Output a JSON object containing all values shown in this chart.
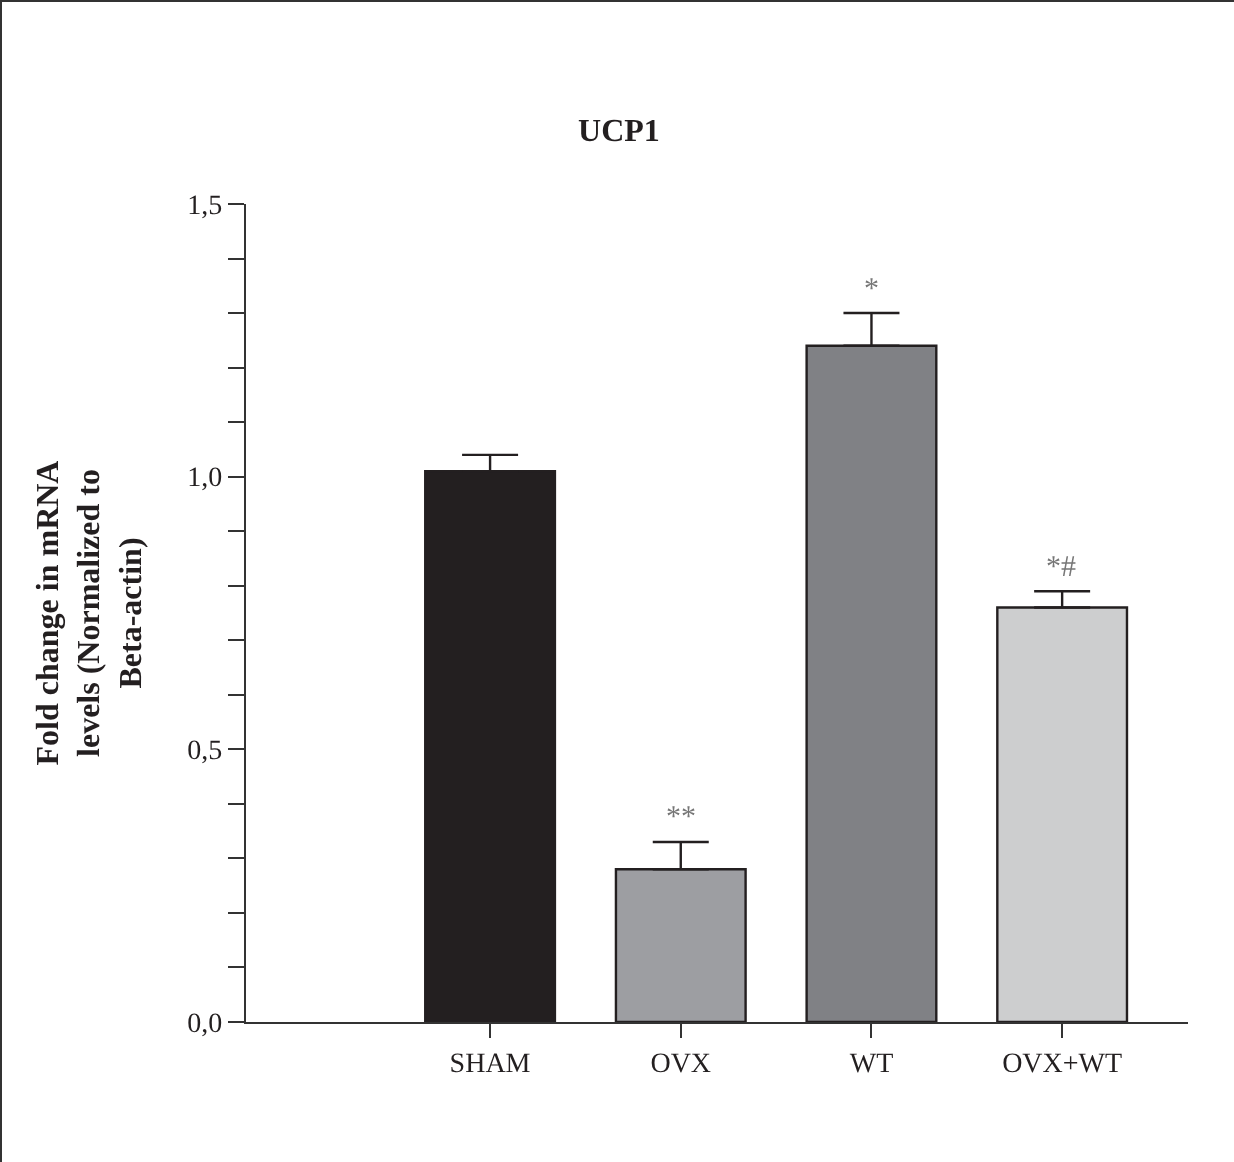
{
  "chart_data": {
    "type": "bar",
    "title": "UCP1",
    "ylabel": "Fold change in mRNA\nlevels (Normalized to\nBeta-actin)",
    "categories": [
      "SHAM",
      "OVX",
      "WT",
      "OVX+WT"
    ],
    "values": [
      1.01,
      0.28,
      1.24,
      0.76
    ],
    "colors": [
      "#231f20",
      "#9d9ea2",
      "#808185",
      "#cdcecf"
    ],
    "errors": [
      [
        1.01,
        1.04
      ],
      [
        0.28,
        0.33
      ],
      [
        1.24,
        1.3
      ],
      [
        0.76,
        0.79
      ]
    ],
    "ylim": [
      0,
      1.5
    ],
    "yticks": [
      {
        "value": 0,
        "label": "0,0"
      },
      {
        "value": 0.1,
        "label": null
      },
      {
        "value": 0.2,
        "label": null
      },
      {
        "value": 0.3,
        "label": null
      },
      {
        "value": 0.4,
        "label": null
      },
      {
        "value": 0.5,
        "label": "0,5"
      },
      {
        "value": 0.6,
        "label": null
      },
      {
        "value": 0.7,
        "label": null
      },
      {
        "value": 0.8,
        "label": null
      },
      {
        "value": 0.9,
        "label": null
      },
      {
        "value": 1,
        "label": "1,0"
      },
      {
        "value": 1.1,
        "label": null
      },
      {
        "value": 1.2,
        "label": null
      },
      {
        "value": 1.3,
        "label": null
      },
      {
        "value": 1.4,
        "label": null
      },
      {
        "value": 1.5,
        "label": "1,5"
      }
    ],
    "annotations": [
      {
        "text": "**",
        "x": "OVX",
        "y": 0.33
      },
      {
        "text": "*",
        "x": "WT",
        "y": 1.3
      },
      {
        "text": "*#",
        "x": "OVX+WT",
        "y": 0.79
      }
    ],
    "tick_labels": "xy"
  }
}
